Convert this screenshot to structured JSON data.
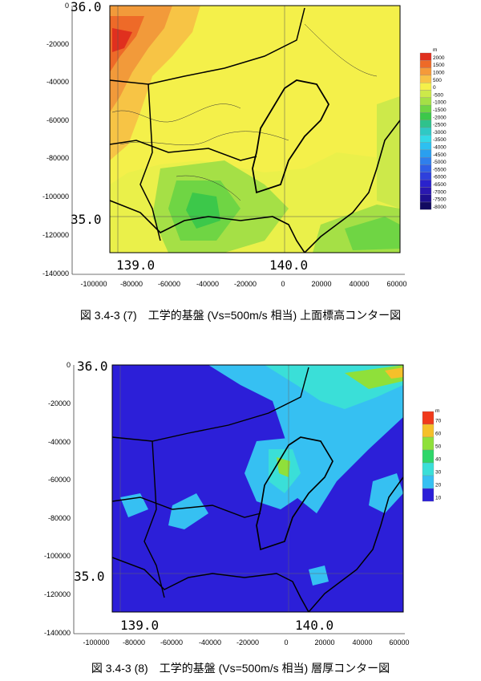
{
  "figures": [
    {
      "id": "elevation",
      "caption": "図 3.4-3 (7)　工学的基盤 (Vs=500m/s 相当) 上面標高コンター図",
      "latitude_labels": [
        "36.0",
        "35.0"
      ],
      "longitude_labels": [
        "139.0",
        "140.0"
      ],
      "x_ticks": [
        "-100000",
        "-80000",
        "-60000",
        "-40000",
        "-20000",
        "0",
        "20000",
        "40000",
        "60000"
      ],
      "y_ticks": [
        "0",
        "-20000",
        "-40000",
        "-60000",
        "-80000",
        "-100000",
        "-120000",
        "-140000"
      ],
      "legend_unit": "m",
      "legend": [
        {
          "label": "2000",
          "color": "#e0301e"
        },
        {
          "label": "1500",
          "color": "#ee6a28"
        },
        {
          "label": "1000",
          "color": "#f59a3a"
        },
        {
          "label": "500",
          "color": "#f8c246"
        },
        {
          "label": "0",
          "color": "#f5f04a"
        },
        {
          "label": "-500",
          "color": "#cde94a"
        },
        {
          "label": "-1000",
          "color": "#a5e046"
        },
        {
          "label": "-1500",
          "color": "#6fd544"
        },
        {
          "label": "-2000",
          "color": "#3cc84a"
        },
        {
          "label": "-2500",
          "color": "#2fc28c"
        },
        {
          "label": "-3000",
          "color": "#2fc9c4"
        },
        {
          "label": "-3500",
          "color": "#33d9e6"
        },
        {
          "label": "-4000",
          "color": "#2dc0f0"
        },
        {
          "label": "-4500",
          "color": "#2a9fef"
        },
        {
          "label": "-5000",
          "color": "#2f7fec"
        },
        {
          "label": "-5500",
          "color": "#2f5fe6"
        },
        {
          "label": "-6000",
          "color": "#2e40dc"
        },
        {
          "label": "-6500",
          "color": "#2a22cc"
        },
        {
          "label": "-7000",
          "color": "#2a18b0"
        },
        {
          "label": "-7500",
          "color": "#1e1090"
        },
        {
          "label": "-8000",
          "color": "#120a60"
        }
      ]
    },
    {
      "id": "thickness",
      "caption": "図 3.4-3 (8)　工学的基盤 (Vs=500m/s 相当) 層厚コンター図",
      "latitude_labels": [
        "36.0",
        "35.0"
      ],
      "longitude_labels": [
        "139.0",
        "140.0"
      ],
      "x_ticks": [
        "-100000",
        "-80000",
        "-60000",
        "-40000",
        "-20000",
        "0",
        "20000",
        "40000",
        "60000"
      ],
      "y_ticks": [
        "0",
        "-20000",
        "-40000",
        "-60000",
        "-80000",
        "-100000",
        "-120000",
        "-140000"
      ],
      "legend_unit": "m",
      "legend": [
        {
          "label": "70",
          "color": "#f03a1c"
        },
        {
          "label": "60",
          "color": "#f5c02a"
        },
        {
          "label": "50",
          "color": "#8fe03a"
        },
        {
          "label": "40",
          "color": "#2fd66a"
        },
        {
          "label": "30",
          "color": "#3adfd8"
        },
        {
          "label": "20",
          "color": "#36c0f2"
        },
        {
          "label": "10",
          "color": "#2c1fd8"
        }
      ]
    }
  ]
}
